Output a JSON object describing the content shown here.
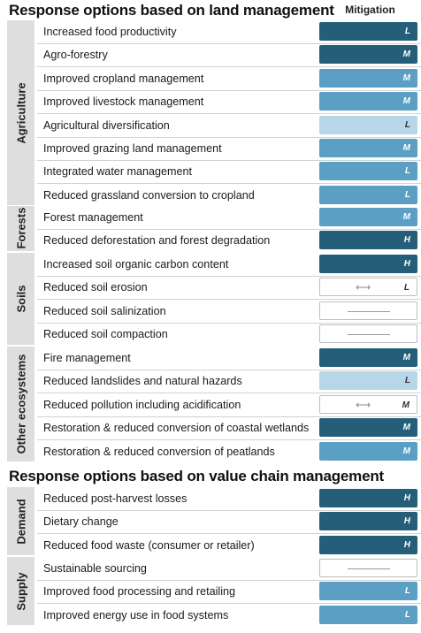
{
  "land_title": "Response options based on land management",
  "value_chain_title": "Response options based on value chain management",
  "mitigation_header": "Mitigation",
  "colors": {
    "dark": "#245e78",
    "medium": "#5b9fc4",
    "light": "#b7d6ea",
    "none": "#ffffff",
    "group_bg": "#dedede"
  },
  "groups": [
    {
      "label": "Agriculture",
      "rows": [
        {
          "label": "Increased food productivity",
          "level": "dark",
          "confidence": "L"
        },
        {
          "label": "Agro-forestry",
          "level": "dark",
          "confidence": "M"
        },
        {
          "label": "Improved cropland management",
          "level": "medium",
          "confidence": "M"
        },
        {
          "label": "Improved livestock management",
          "level": "medium",
          "confidence": "M"
        },
        {
          "label": "Agricultural diversification",
          "level": "light",
          "confidence": "L"
        },
        {
          "label": "Improved grazing land management",
          "level": "medium",
          "confidence": "M"
        },
        {
          "label": "Integrated water management",
          "level": "medium",
          "confidence": "L"
        },
        {
          "label": "Reduced grassland conversion to cropland",
          "level": "medium",
          "confidence": "L"
        }
      ]
    },
    {
      "label": "Forests",
      "rows": [
        {
          "label": "Forest management",
          "level": "medium",
          "confidence": "M"
        },
        {
          "label": "Reduced deforestation and forest degradation",
          "level": "dark",
          "confidence": "H"
        }
      ]
    },
    {
      "label": "Soils",
      "rows": [
        {
          "label": "Increased soil organic carbon content",
          "level": "dark",
          "confidence": "H"
        },
        {
          "label": "Reduced soil erosion",
          "level": "range",
          "confidence": "L"
        },
        {
          "label": "Reduced soil salinization",
          "level": "none",
          "confidence": ""
        },
        {
          "label": "Reduced soil compaction",
          "level": "none",
          "confidence": ""
        }
      ]
    },
    {
      "label": "Other ecosystems",
      "rows": [
        {
          "label": "Fire management",
          "level": "dark",
          "confidence": "M"
        },
        {
          "label": "Reduced landslides and natural hazards",
          "level": "light",
          "confidence": "L"
        },
        {
          "label": "Reduced pollution including acidification",
          "level": "range",
          "confidence": "M"
        },
        {
          "label": "Restoration & reduced conversion of coastal wetlands",
          "level": "dark",
          "confidence": "M"
        },
        {
          "label": "Restoration & reduced conversion of peatlands",
          "level": "medium",
          "confidence": "M"
        }
      ]
    },
    {
      "label": "Demand",
      "rows": [
        {
          "label": "Reduced post-harvest losses",
          "level": "dark",
          "confidence": "H"
        },
        {
          "label": "Dietary change",
          "level": "dark",
          "confidence": "H"
        },
        {
          "label": "Reduced food waste (consumer or retailer)",
          "level": "dark",
          "confidence": "H"
        }
      ]
    },
    {
      "label": "Supply",
      "rows": [
        {
          "label": "Sustainable sourcing",
          "level": "none",
          "confidence": ""
        },
        {
          "label": "Improved food processing and retailing",
          "level": "medium",
          "confidence": "L"
        },
        {
          "label": "Improved energy use in food systems",
          "level": "medium",
          "confidence": "L"
        }
      ]
    }
  ]
}
